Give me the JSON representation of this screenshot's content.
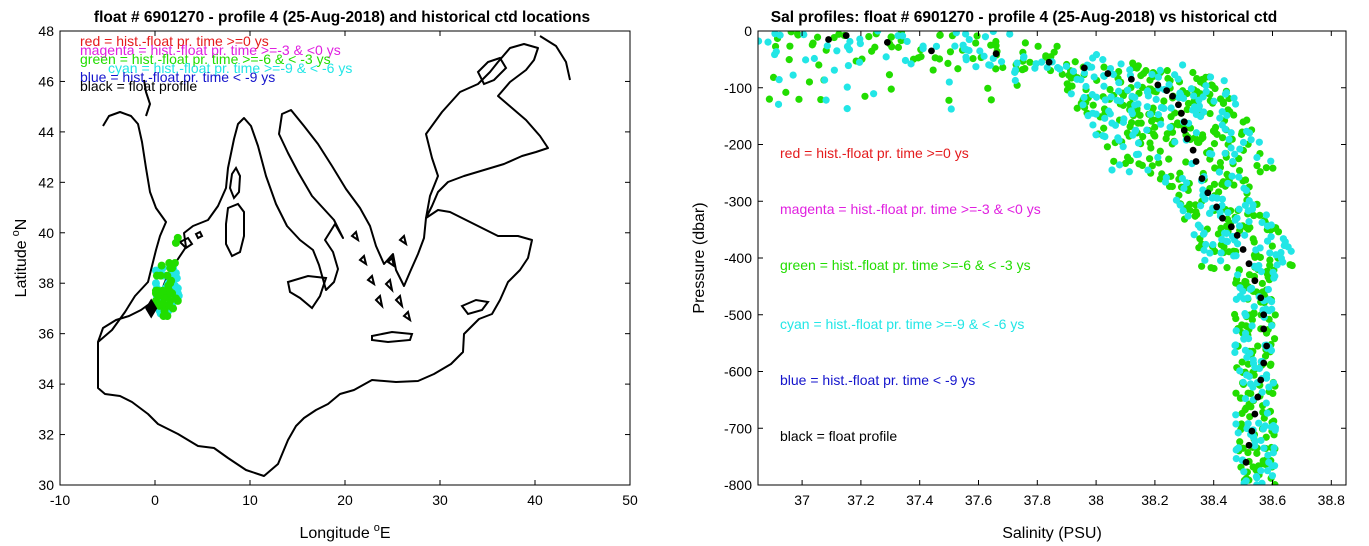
{
  "colors": {
    "red": "#e41a1c",
    "magenta": "#e020e0",
    "green": "#22dd00",
    "cyan": "#22e6e6",
    "blue": "#1414cc",
    "black": "#000000"
  },
  "chart_data": [
    {
      "type": "scatter",
      "title": "float # 6901270 - profile 4 (25-Aug-2018) and historical ctd locations",
      "xlabel": "Longitude",
      "xlabel_sup": "o",
      "xlabel_tail": "E",
      "ylabel": "Latitude",
      "ylabel_sup": "o",
      "ylabel_tail": "N",
      "xlim": [
        -10,
        50
      ],
      "ylim": [
        30,
        48
      ],
      "xticks": [
        "-10",
        "0",
        "10",
        "20",
        "30",
        "40",
        "50"
      ],
      "yticks": [
        "30",
        "32",
        "34",
        "36",
        "38",
        "40",
        "42",
        "44",
        "46",
        "48"
      ],
      "legend_placement": "top-left",
      "legend": [
        {
          "label": "red = hist.-float pr. time >=0 ys",
          "color": "red"
        },
        {
          "label": "magenta = hist.-float pr. time >=-3 & <0 ys",
          "color": "magenta"
        },
        {
          "label": "green = hist.-float pr. time >=-6 & < -3 ys",
          "color": "green"
        },
        {
          "label": "cyan = hist.-float pr. time >=-9 & < -6 ys",
          "color": "cyan"
        },
        {
          "label": "blue = hist.-float pr. time < -9 ys",
          "color": "blue"
        },
        {
          "label": "black = float profile",
          "color": "black"
        }
      ],
      "float_location": {
        "lon": -0.4,
        "lat": 37.0
      },
      "series": [
        {
          "color": "cyan",
          "points": [
            [
              1.4,
              37.7
            ],
            [
              1.5,
              37.4
            ],
            [
              1.5,
              38.3
            ],
            [
              2.5,
              37.5
            ],
            [
              1.2,
              37.8
            ],
            [
              1.5,
              38.3
            ],
            [
              1.4,
              37.9
            ],
            [
              1.7,
              37.1
            ],
            [
              0.6,
              37.0
            ],
            [
              2.2,
              38.4
            ],
            [
              1.8,
              38.3
            ],
            [
              0.3,
              37.3
            ],
            [
              1.1,
              36.9
            ],
            [
              1.7,
              37.1
            ],
            [
              0.2,
              37.8
            ],
            [
              1.9,
              38.6
            ],
            [
              0.3,
              38.5
            ],
            [
              1.4,
              38.0
            ],
            [
              1.6,
              37.6
            ],
            [
              0.4,
              37.6
            ],
            [
              2.4,
              37.6
            ],
            [
              1.1,
              37.8
            ],
            [
              1.9,
              38.2
            ],
            [
              0.4,
              37.5
            ],
            [
              1.0,
              37.0
            ],
            [
              0.6,
              36.8
            ],
            [
              0.7,
              37.5
            ],
            [
              1.3,
              37.9
            ],
            [
              2.1,
              37.9
            ],
            [
              1.9,
              38.1
            ],
            [
              1.0,
              38.3
            ],
            [
              0.8,
              37.6
            ],
            [
              0.6,
              36.9
            ],
            [
              1.5,
              37.4
            ],
            [
              1.4,
              36.9
            ],
            [
              0.2,
              37.5
            ],
            [
              0.3,
              37.6
            ],
            [
              0.4,
              37.7
            ],
            [
              1.8,
              37.1
            ],
            [
              0.1,
              38.5
            ],
            [
              2.2,
              37.8
            ],
            [
              0.8,
              37.6
            ],
            [
              0.5,
              36.9
            ],
            [
              1.6,
              38.7
            ],
            [
              0.1,
              38.0
            ],
            [
              0.8,
              38.6
            ],
            [
              1.3,
              37.7
            ],
            [
              1.8,
              38.4
            ],
            [
              1.2,
              37.7
            ],
            [
              2.3,
              38.2
            ],
            [
              0.8,
              36.8
            ],
            [
              0.7,
              38.3
            ],
            [
              2.4,
              37.8
            ],
            [
              1.7,
              38.3
            ],
            [
              0.6,
              37.6
            ]
          ]
        },
        {
          "color": "green",
          "points": [
            [
              0.2,
              38.3
            ],
            [
              0.6,
              37.6
            ],
            [
              0.2,
              37.7
            ],
            [
              1.3,
              37.5
            ],
            [
              0.1,
              37.7
            ],
            [
              0.3,
              37.7
            ],
            [
              1.0,
              37.5
            ],
            [
              0.3,
              37.2
            ],
            [
              1.6,
              37.3
            ],
            [
              1.8,
              37.6
            ],
            [
              0.1,
              37.3
            ],
            [
              1.0,
              36.9
            ],
            [
              0.7,
              38.7
            ],
            [
              1.3,
              36.7
            ],
            [
              1.3,
              38.3
            ],
            [
              0.6,
              38.3
            ],
            [
              0.1,
              37.6
            ],
            [
              1.6,
              38.6
            ],
            [
              0.9,
              36.7
            ],
            [
              0.5,
              37.1
            ],
            [
              1.4,
              37.9
            ],
            [
              2.4,
              37.3
            ],
            [
              0.5,
              37.5
            ],
            [
              1.0,
              37.4
            ],
            [
              1.8,
              38.6
            ],
            [
              1.7,
              38.1
            ],
            [
              1.9,
              37.0
            ],
            [
              1.1,
              37.1
            ],
            [
              1.6,
              37.6
            ],
            [
              1.6,
              38.0
            ],
            [
              1.5,
              37.1
            ],
            [
              1.5,
              37.7
            ],
            [
              2.2,
              37.4
            ],
            [
              0.8,
              37.7
            ],
            [
              0.8,
              37.2
            ],
            [
              1.5,
              38.8
            ],
            [
              2.1,
              38.8
            ],
            [
              2.4,
              39.8
            ],
            [
              2.2,
              39.6
            ]
          ]
        }
      ]
    },
    {
      "type": "scatter",
      "title": "Sal profiles: float # 6901270 - profile 4 (25-Aug-2018) vs historical ctd",
      "xlabel": "Salinity (PSU)",
      "ylabel": "Pressure (dbar)",
      "xlim": [
        36.85,
        38.85
      ],
      "ylim": [
        -800,
        0
      ],
      "xticks": [
        "37",
        "37.2",
        "37.4",
        "37.6",
        "37.8",
        "38",
        "38.2",
        "38.4",
        "38.6",
        "38.8"
      ],
      "yticks": [
        "0",
        "-100",
        "-200",
        "-300",
        "-400",
        "-500",
        "-600",
        "-700",
        "-800"
      ],
      "legend_placement": "left-inside",
      "legend": [
        {
          "label": "red = hist.-float pr. time >=0 ys",
          "color": "red"
        },
        {
          "label": "magenta = hist.-float pr. time >=-3 & <0 ys",
          "color": "magenta"
        },
        {
          "label": "green = hist.-float pr. time >=-6 & < -3 ys",
          "color": "green"
        },
        {
          "label": "cyan = hist.-float pr. time >=-9 & < -6 ys",
          "color": "cyan"
        },
        {
          "label": "blue = hist.-float pr. time < -9 ys",
          "color": "blue"
        },
        {
          "label": "black = float profile",
          "color": "black"
        }
      ],
      "float_profile": [
        [
          37.09,
          -15
        ],
        [
          37.15,
          -8
        ],
        [
          37.29,
          -20
        ],
        [
          37.44,
          -35
        ],
        [
          37.66,
          -40
        ],
        [
          37.84,
          -55
        ],
        [
          37.96,
          -65
        ],
        [
          38.04,
          -75
        ],
        [
          38.12,
          -85
        ],
        [
          38.21,
          -95
        ],
        [
          38.24,
          -105
        ],
        [
          38.26,
          -115
        ],
        [
          38.28,
          -130
        ],
        [
          38.29,
          -145
        ],
        [
          38.3,
          -160
        ],
        [
          38.3,
          -175
        ],
        [
          38.31,
          -190
        ],
        [
          38.33,
          -210
        ],
        [
          38.34,
          -230
        ],
        [
          38.36,
          -260
        ],
        [
          38.38,
          -285
        ],
        [
          38.41,
          -310
        ],
        [
          38.43,
          -330
        ],
        [
          38.46,
          -345
        ],
        [
          38.48,
          -360
        ],
        [
          38.5,
          -385
        ],
        [
          38.52,
          -410
        ],
        [
          38.54,
          -440
        ],
        [
          38.56,
          -470
        ],
        [
          38.57,
          -500
        ],
        [
          38.57,
          -525
        ],
        [
          38.58,
          -555
        ],
        [
          38.57,
          -585
        ],
        [
          38.56,
          -615
        ],
        [
          38.55,
          -645
        ],
        [
          38.54,
          -675
        ],
        [
          38.53,
          -705
        ],
        [
          38.52,
          -730
        ],
        [
          38.51,
          -760
        ]
      ]
    }
  ]
}
